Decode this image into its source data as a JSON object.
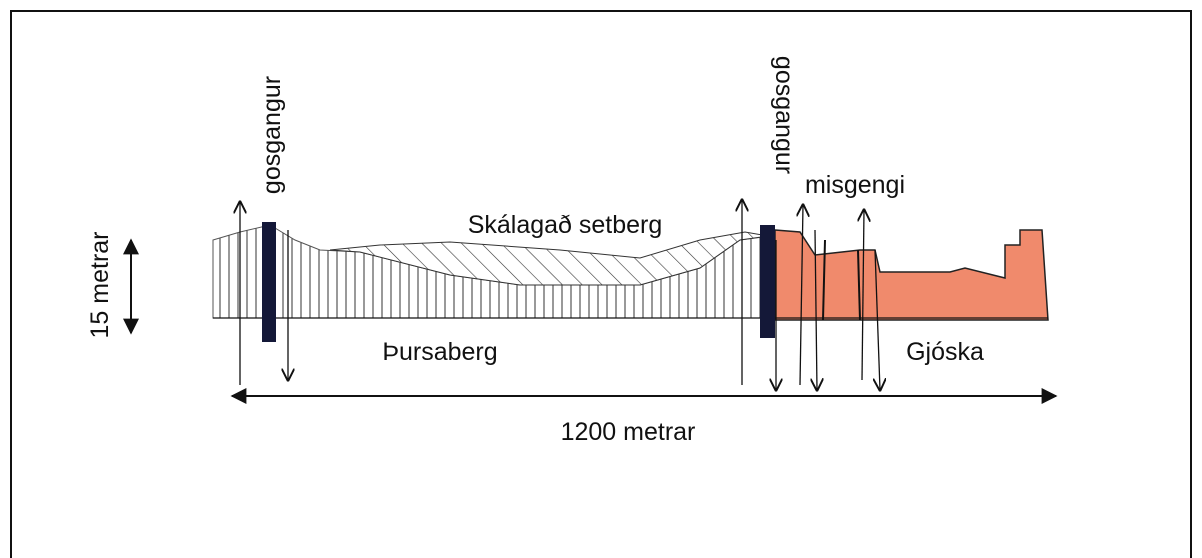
{
  "labels": {
    "gosgangur_left": "gosgangur",
    "gosgangur_right": "gosgangur",
    "misgengi": "misgengi",
    "setberg": "Skálagað setberg",
    "thursaberg": "Þursaberg",
    "gjoska": "Gjóska",
    "height": "15 metrar",
    "width": "1200 metrar"
  }
}
